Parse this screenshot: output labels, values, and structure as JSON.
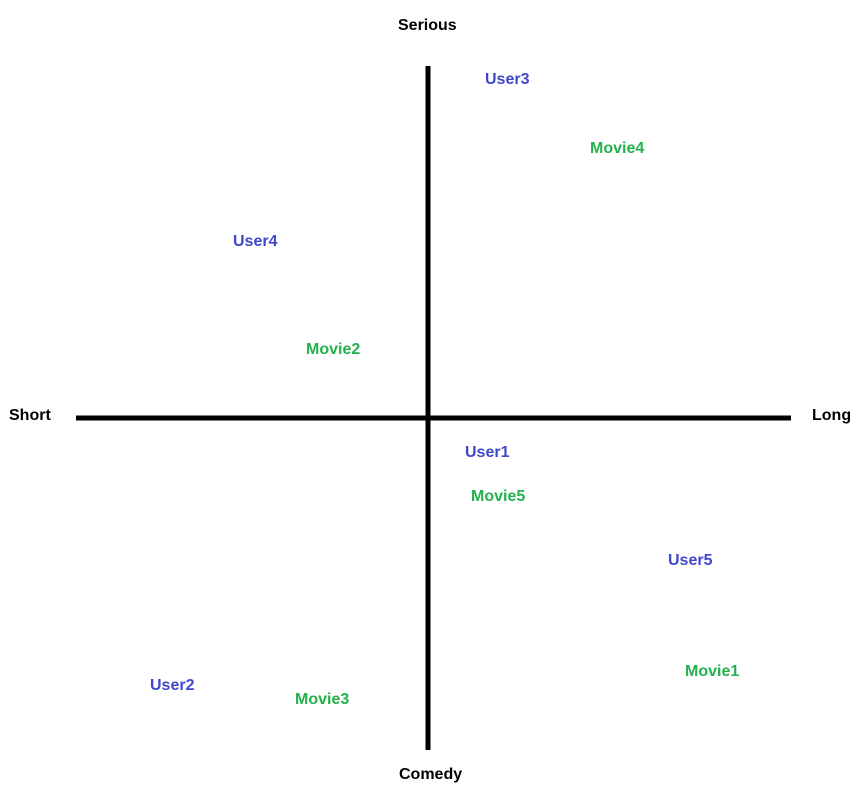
{
  "axes": {
    "top_label": "Serious",
    "bottom_label": "Comedy",
    "left_label": "Short",
    "right_label": "Long"
  },
  "colors": {
    "user": "#3F48CC",
    "movie": "#22B14C",
    "axis": "#000000"
  },
  "points": [
    {
      "label": "User3",
      "kind": "user"
    },
    {
      "label": "Movie4",
      "kind": "movie"
    },
    {
      "label": "User4",
      "kind": "user"
    },
    {
      "label": "Movie2",
      "kind": "movie"
    },
    {
      "label": "User1",
      "kind": "user"
    },
    {
      "label": "Movie5",
      "kind": "movie"
    },
    {
      "label": "User5",
      "kind": "user"
    },
    {
      "label": "Movie1",
      "kind": "movie"
    },
    {
      "label": "User2",
      "kind": "user"
    },
    {
      "label": "Movie3",
      "kind": "movie"
    }
  ]
}
